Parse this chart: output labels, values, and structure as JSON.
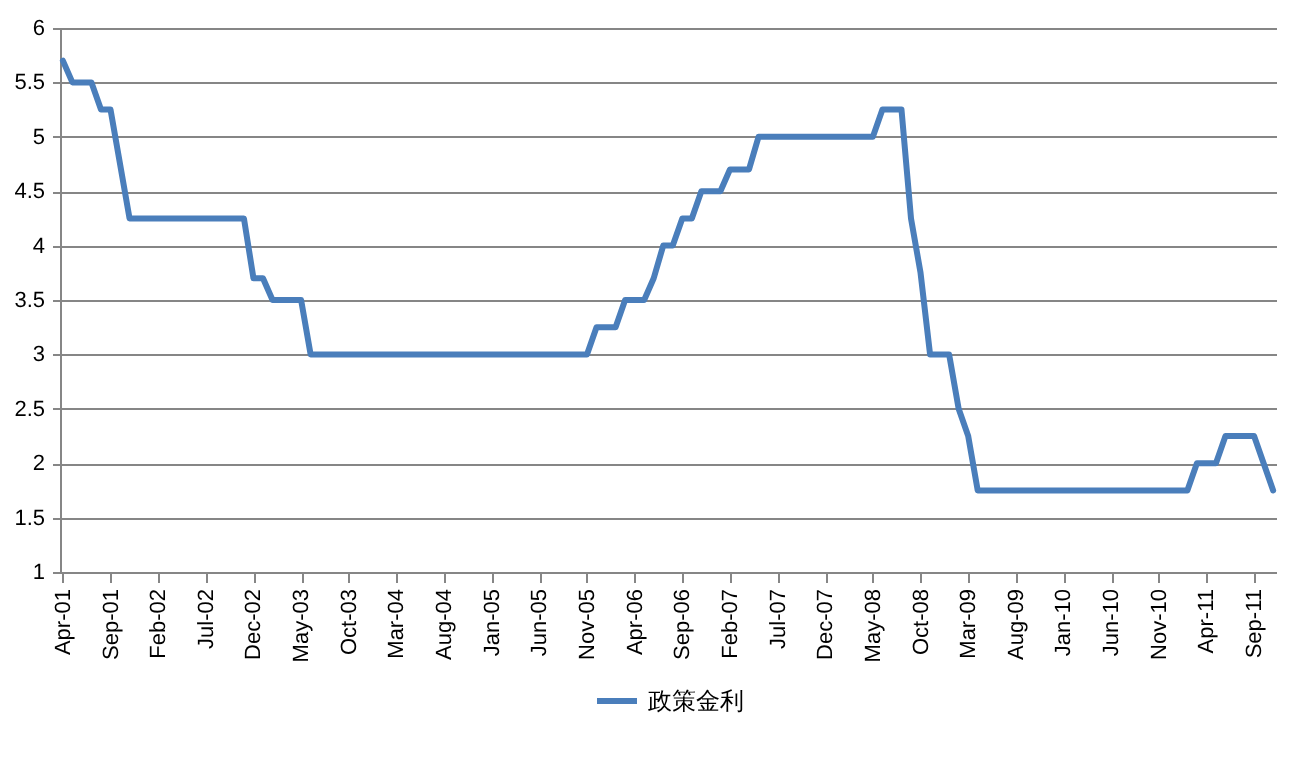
{
  "chart_data": {
    "type": "line",
    "categories": [
      "Apr-01",
      null,
      null,
      null,
      null,
      "Sep-01",
      null,
      null,
      null,
      null,
      "Feb-02",
      null,
      null,
      null,
      null,
      "Jul-02",
      null,
      null,
      null,
      null,
      "Dec-02",
      null,
      null,
      null,
      null,
      "May-03",
      null,
      null,
      null,
      null,
      "Oct-03",
      null,
      null,
      null,
      null,
      "Mar-04",
      null,
      null,
      null,
      null,
      "Aug-04",
      null,
      null,
      null,
      null,
      "Jan-05",
      null,
      null,
      null,
      null,
      "Jun-05",
      null,
      null,
      null,
      null,
      "Nov-05",
      null,
      null,
      null,
      null,
      "Apr-06",
      null,
      null,
      null,
      null,
      "Sep-06",
      null,
      null,
      null,
      null,
      "Feb-07",
      null,
      null,
      null,
      null,
      "Jul-07",
      null,
      null,
      null,
      null,
      "Dec-07",
      null,
      null,
      null,
      null,
      "May-08",
      null,
      null,
      null,
      null,
      "Oct-08",
      null,
      null,
      null,
      null,
      "Mar-09",
      null,
      null,
      null,
      null,
      "Aug-09",
      null,
      null,
      null,
      null,
      "Jan-10",
      null,
      null,
      null,
      null,
      "Jun-10",
      null,
      null,
      null,
      null,
      "Nov-10",
      null,
      null,
      null,
      null,
      "Apr-11",
      null,
      null,
      null,
      null,
      "Sep-11",
      null,
      null
    ],
    "series": [
      {
        "name": "政策金利",
        "color": "#4a7ebb",
        "values": [
          5.7,
          5.5,
          5.5,
          5.5,
          5.25,
          5.25,
          4.75,
          4.25,
          4.25,
          4.25,
          4.25,
          4.25,
          4.25,
          4.25,
          4.25,
          4.25,
          4.25,
          4.25,
          4.25,
          4.25,
          3.7,
          3.7,
          3.5,
          3.5,
          3.5,
          3.5,
          3.0,
          3.0,
          3.0,
          3.0,
          3.0,
          3.0,
          3.0,
          3.0,
          3.0,
          3.0,
          3.0,
          3.0,
          3.0,
          3.0,
          3.0,
          3.0,
          3.0,
          3.0,
          3.0,
          3.0,
          3.0,
          3.0,
          3.0,
          3.0,
          3.0,
          3.0,
          3.0,
          3.0,
          3.0,
          3.0,
          3.25,
          3.25,
          3.25,
          3.5,
          3.5,
          3.5,
          3.7,
          4.0,
          4.0,
          4.25,
          4.25,
          4.5,
          4.5,
          4.5,
          4.7,
          4.7,
          4.7,
          5.0,
          5.0,
          5.0,
          5.0,
          5.0,
          5.0,
          5.0,
          5.0,
          5.0,
          5.0,
          5.0,
          5.0,
          5.0,
          5.25,
          5.25,
          5.25,
          4.25,
          3.75,
          3.0,
          3.0,
          3.0,
          2.5,
          2.25,
          1.75,
          1.75,
          1.75,
          1.75,
          1.75,
          1.75,
          1.75,
          1.75,
          1.75,
          1.75,
          1.75,
          1.75,
          1.75,
          1.75,
          1.75,
          1.75,
          1.75,
          1.75,
          1.75,
          1.75,
          1.75,
          1.75,
          1.75,
          2.0,
          2.0,
          2.0,
          2.25,
          2.25,
          2.25,
          2.25,
          2.0,
          1.75
        ]
      }
    ],
    "ylim": [
      1,
      6
    ],
    "yticks": [
      1,
      1.5,
      2,
      2.5,
      3,
      3.5,
      4,
      4.5,
      5,
      5.5,
      6
    ],
    "grid": "y",
    "legend": "bottom",
    "line_style": "solid"
  }
}
